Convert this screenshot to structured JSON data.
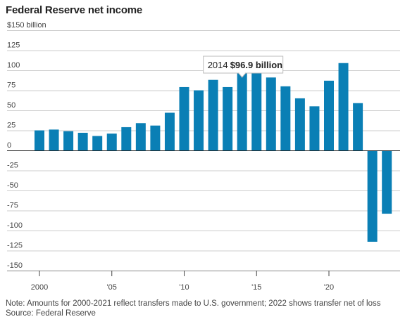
{
  "title": "Federal Reserve net income",
  "note": "Note: Amounts for 2000-2021 reflect transfers made to U.S. government; 2022 shows transfer net of loss",
  "source": "Source: Federal Reserve",
  "colors": {
    "bar": "#0a7fb5",
    "grid": "#cccccc",
    "zero_line": "#222222"
  },
  "chart_data": {
    "type": "bar",
    "title": "Federal Reserve net income",
    "xlabel": "",
    "ylabel": "",
    "unit_label": "$150 billion",
    "ylim": [
      -150,
      150
    ],
    "yticks": [
      150,
      125,
      100,
      75,
      50,
      25,
      0,
      -25,
      -50,
      -75,
      -100,
      -125,
      -150
    ],
    "ytick_labels": [
      "$150 billion",
      "125",
      "100",
      "75",
      "50",
      "25",
      "0",
      "-25",
      "-50",
      "-75",
      "-100",
      "-125",
      "-150"
    ],
    "x_tick_labels": [
      {
        "year": 2000,
        "label": "2000"
      },
      {
        "year": 2005,
        "label": "'05"
      },
      {
        "year": 2010,
        "label": "'10"
      },
      {
        "year": 2015,
        "label": "'15"
      },
      {
        "year": 2020,
        "label": "'20"
      }
    ],
    "categories": [
      2000,
      2001,
      2002,
      2003,
      2004,
      2005,
      2006,
      2007,
      2008,
      2009,
      2010,
      2011,
      2012,
      2013,
      2014,
      2015,
      2016,
      2017,
      2018,
      2019,
      2020,
      2021,
      2022,
      2023,
      2024
    ],
    "values": [
      25,
      26,
      24,
      22,
      18,
      21,
      29,
      34,
      31,
      47,
      79,
      75,
      88,
      79,
      96.9,
      102,
      91,
      80,
      65,
      55,
      87,
      109,
      59,
      -114,
      -79
    ],
    "annotation": {
      "year": 2014,
      "year_label": "2014",
      "value_label": "$96.9 billion"
    }
  }
}
